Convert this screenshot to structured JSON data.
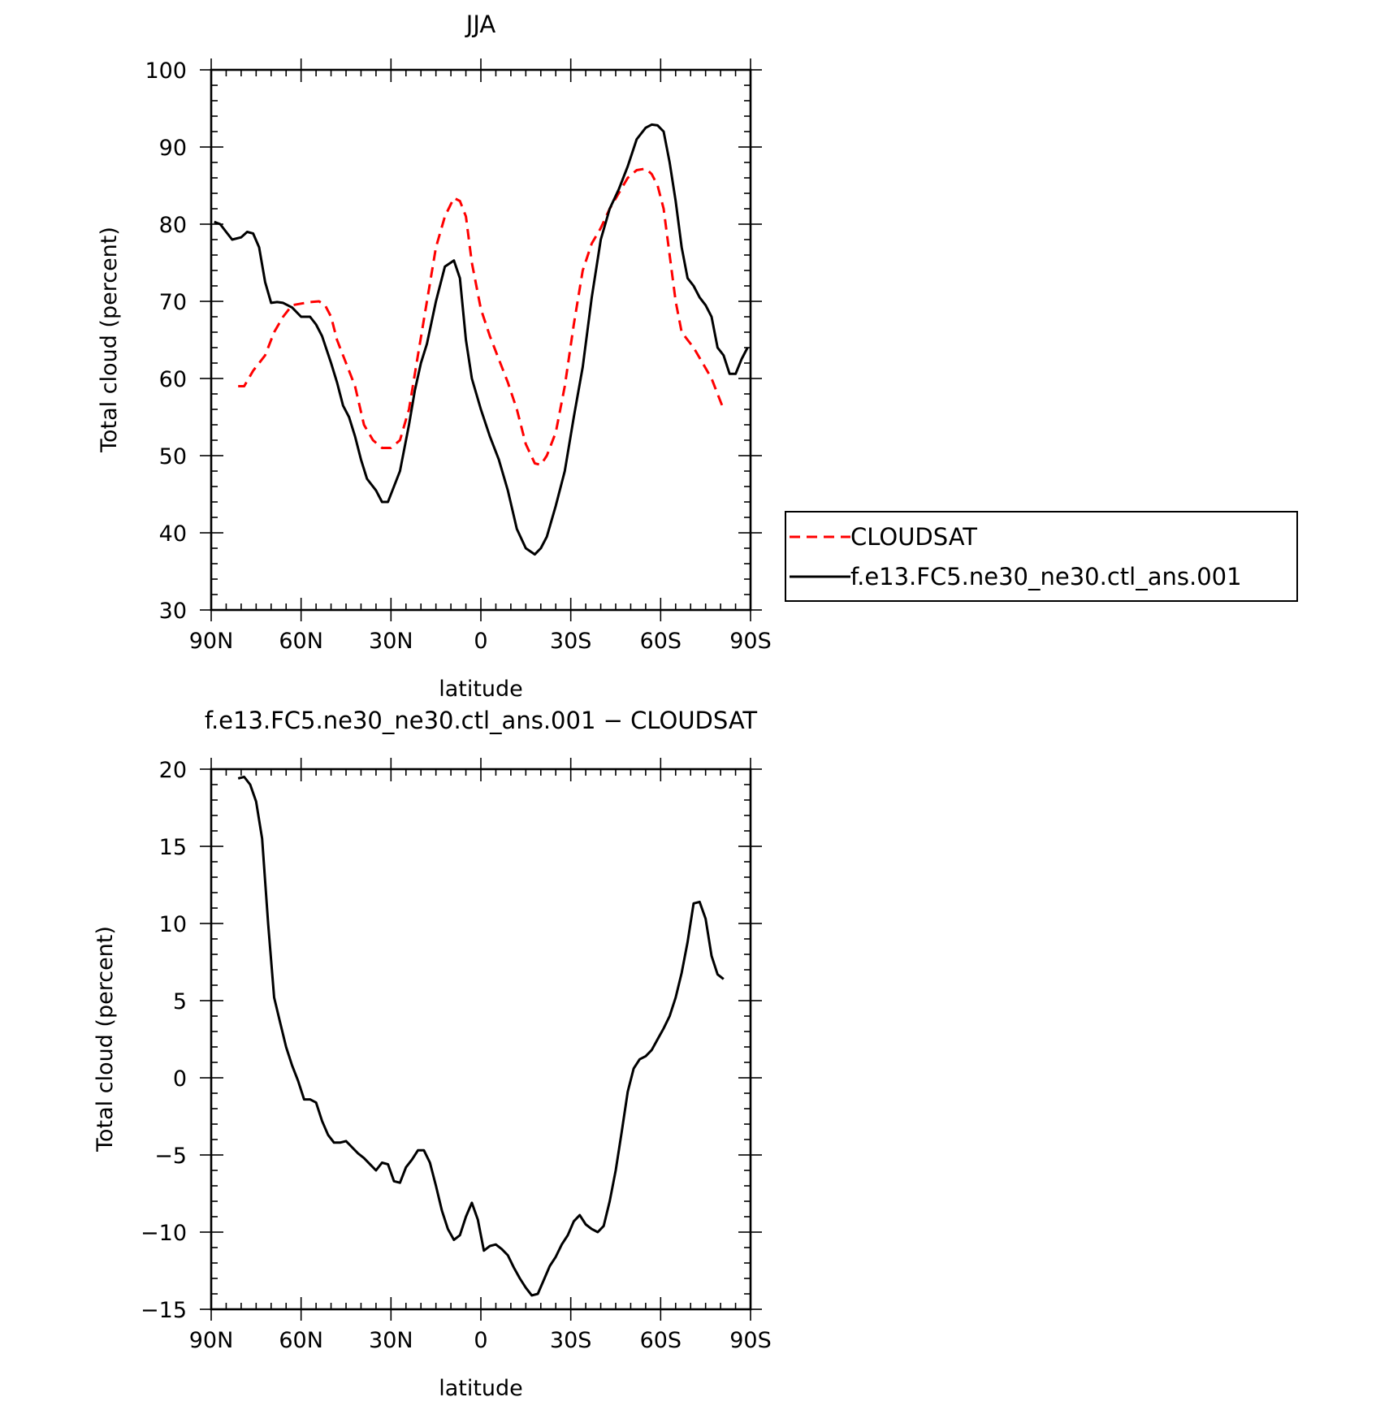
{
  "chart_data": [
    {
      "type": "line",
      "title": "JJA",
      "xlabel": "latitude",
      "ylabel": "Total cloud (percent)",
      "xlim": [
        90,
        -90
      ],
      "ylim": [
        30,
        100
      ],
      "xtick_values": [
        90,
        60,
        30,
        0,
        -30,
        -60,
        -90
      ],
      "xtick_labels": [
        "90N",
        "60N",
        "30N",
        "0",
        "30S",
        "60S",
        "90S"
      ],
      "yticks": [
        30,
        40,
        50,
        60,
        70,
        80,
        90,
        100
      ],
      "legend": "right, outside plot",
      "series": [
        {
          "name": "CLOUDSAT",
          "color": "#ff0000",
          "dash": true,
          "x": [
            81,
            79,
            76,
            72,
            69,
            66,
            63,
            60,
            57,
            54,
            52,
            50,
            48,
            45,
            42,
            39,
            36,
            33,
            30,
            27,
            24,
            21,
            18,
            15,
            12,
            9,
            7,
            5,
            3,
            0,
            -3,
            -6,
            -9,
            -12,
            -15,
            -18,
            -20,
            -22,
            -25,
            -28,
            -31,
            -34,
            -37,
            -40,
            -43,
            -46,
            -49,
            -52,
            -55,
            -57,
            -59,
            -61,
            -63,
            -65,
            -67,
            -69,
            -71,
            -74,
            -77,
            -79,
            -81
          ],
          "y": [
            59,
            59,
            61,
            63,
            66,
            68,
            69.5,
            69.7,
            69.9,
            70,
            69.5,
            68,
            65,
            62,
            59,
            54,
            52,
            51,
            51,
            52,
            56,
            63,
            70,
            77,
            81,
            83.4,
            83,
            81,
            75,
            69,
            65.5,
            62.5,
            59.5,
            56,
            51.5,
            49,
            48.8,
            50,
            53,
            59,
            67,
            74,
            77.5,
            79.5,
            82,
            84,
            86,
            87,
            87.2,
            86.5,
            85,
            82,
            76,
            70,
            66,
            65,
            64,
            62,
            60,
            58,
            56
          ]
        },
        {
          "name": "f.e13.FC5.ne30_ne30.ctl_ans.001",
          "color": "#000000",
          "dash": false,
          "x": [
            89,
            87,
            85,
            83,
            80,
            78,
            76,
            74,
            72,
            70,
            68,
            66,
            63,
            60,
            57,
            55,
            53,
            50,
            48,
            46,
            44,
            42,
            40,
            38,
            35,
            33,
            31,
            29,
            27,
            24,
            22,
            20,
            18,
            15,
            12,
            9,
            7,
            5,
            3,
            0,
            -3,
            -6,
            -9,
            -12,
            -15,
            -18,
            -20,
            -22,
            -25,
            -28,
            -31,
            -34,
            -37,
            -40,
            -43,
            -46,
            -49,
            -52,
            -55,
            -57,
            -59,
            -61,
            -63,
            -65,
            -67,
            -69,
            -71,
            -73,
            -75,
            -77,
            -79,
            -81,
            -83,
            -85,
            -87,
            -89
          ],
          "y": [
            80.3,
            80,
            79,
            78,
            78.3,
            79,
            78.8,
            77,
            72.5,
            69.8,
            69.9,
            69.8,
            69.2,
            68,
            68,
            67,
            65.5,
            62,
            59.5,
            56.5,
            55,
            52.5,
            49.5,
            47,
            45.5,
            44,
            44,
            46,
            48,
            54,
            58.5,
            62,
            64.5,
            70,
            74.5,
            75.3,
            73,
            65,
            60,
            56,
            52.5,
            49.5,
            45.5,
            40.5,
            38,
            37.2,
            38,
            39.5,
            43.5,
            48,
            55,
            61.5,
            70.5,
            78,
            82,
            84.5,
            87.5,
            91,
            92.5,
            92.9,
            92.8,
            92,
            88,
            83,
            77,
            73,
            72,
            70.5,
            69.5,
            68,
            64,
            63,
            60.6,
            60.6,
            62.5,
            64
          ]
        }
      ]
    },
    {
      "type": "line",
      "title": "f.e13.FC5.ne30_ne30.ctl_ans.001 − CLOUDSAT",
      "xlabel": "latitude",
      "ylabel": "Total cloud (percent)",
      "xlim": [
        90,
        -90
      ],
      "ylim": [
        -15,
        20
      ],
      "xtick_values": [
        90,
        60,
        30,
        0,
        -30,
        -60,
        -90
      ],
      "xtick_labels": [
        "90N",
        "60N",
        "30N",
        "0",
        "30S",
        "60S",
        "90S"
      ],
      "yticks": [
        -15,
        -10,
        -5,
        0,
        5,
        10,
        15,
        20
      ],
      "ytick_labels": [
        "−15",
        "−10",
        "−5",
        "0",
        "5",
        "10",
        "15",
        "20"
      ],
      "series": [
        {
          "color": "#000000",
          "dash": false,
          "x": [
            81,
            79,
            77,
            75,
            73,
            71,
            69,
            67,
            65,
            63,
            61,
            59,
            57,
            55,
            53,
            51,
            49,
            47,
            45,
            43,
            41,
            39,
            37,
            35,
            33,
            31,
            29,
            27,
            25,
            23,
            21,
            19,
            17,
            15,
            13,
            11,
            9,
            7,
            5,
            3,
            1,
            -1,
            -3,
            -5,
            -7,
            -9,
            -11,
            -13,
            -15,
            -17,
            -19,
            -21,
            -23,
            -25,
            -27,
            -29,
            -31,
            -33,
            -35,
            -37,
            -39,
            -41,
            -43,
            -45,
            -47,
            -49,
            -51,
            -53,
            -55,
            -57,
            -59,
            -61,
            -63,
            -65,
            -67,
            -69,
            -71,
            -73,
            -75,
            -77,
            -79,
            -81
          ],
          "y": [
            19.4,
            19.5,
            19,
            17.9,
            15.5,
            10,
            5.2,
            3.6,
            2,
            0.8,
            -0.2,
            -1.4,
            -1.4,
            -1.6,
            -2.8,
            -3.7,
            -4.2,
            -4.2,
            -4.1,
            -4.5,
            -4.9,
            -5.2,
            -5.6,
            -6,
            -5.5,
            -5.6,
            -6.7,
            -6.8,
            -5.8,
            -5.3,
            -4.7,
            -4.7,
            -5.5,
            -7,
            -8.6,
            -9.8,
            -10.5,
            -10.2,
            -9,
            -8.1,
            -9.2,
            -11.2,
            -10.9,
            -10.8,
            -11.1,
            -11.5,
            -12.3,
            -13,
            -13.6,
            -14.1,
            -14,
            -13.1,
            -12.2,
            -11.6,
            -10.8,
            -10.2,
            -9.3,
            -8.9,
            -9.5,
            -9.8,
            -10,
            -9.6,
            -8,
            -6,
            -3.5,
            -0.9,
            0.6,
            1.2,
            1.4,
            1.8,
            2.5,
            3.2,
            4,
            5.2,
            6.8,
            8.8,
            11.3,
            11.4,
            10.3,
            7.9,
            6.7,
            6.4
          ]
        }
      ]
    }
  ]
}
